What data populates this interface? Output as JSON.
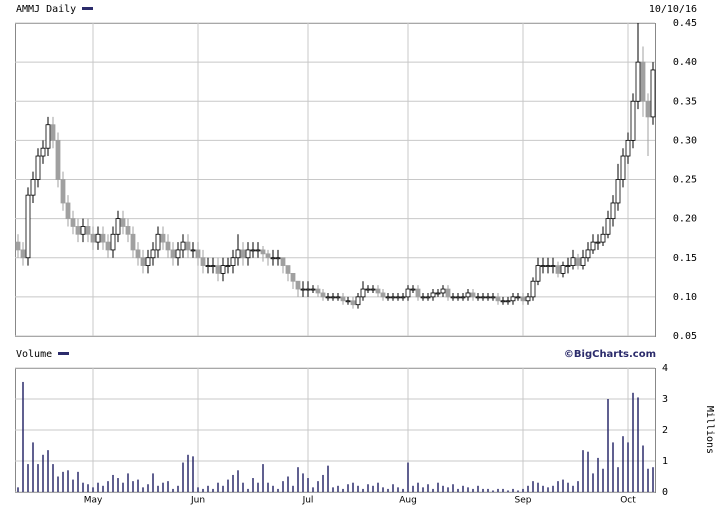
{
  "chart_data": {
    "type": "candlestick",
    "title": "AMMJ Daily",
    "date_label": "10/10/16",
    "source": "©BigCharts.com",
    "categories": [
      null,
      null,
      null,
      null,
      null,
      null,
      null,
      null,
      null,
      null,
      null,
      null,
      null,
      null,
      null,
      "May",
      null,
      null,
      null,
      null,
      null,
      null,
      null,
      null,
      null,
      null,
      null,
      null,
      null,
      null,
      null,
      null,
      null,
      null,
      null,
      null,
      "Jun",
      null,
      null,
      null,
      null,
      null,
      null,
      null,
      null,
      null,
      null,
      null,
      null,
      null,
      null,
      null,
      null,
      null,
      null,
      null,
      null,
      null,
      "Jul",
      null,
      null,
      null,
      null,
      null,
      null,
      null,
      null,
      null,
      null,
      null,
      null,
      null,
      null,
      null,
      null,
      null,
      null,
      null,
      "Aug",
      null,
      null,
      null,
      null,
      null,
      null,
      null,
      null,
      null,
      null,
      null,
      null,
      null,
      null,
      null,
      null,
      null,
      null,
      null,
      null,
      null,
      null,
      "Sep",
      null,
      null,
      null,
      null,
      null,
      null,
      null,
      null,
      null,
      null,
      null,
      null,
      null,
      null,
      null,
      null,
      null,
      null,
      null,
      null,
      "Oct",
      null,
      null,
      null,
      null,
      null
    ],
    "open": [
      0.17,
      0.16,
      0.15,
      0.23,
      0.25,
      0.28,
      0.29,
      0.32,
      0.3,
      0.25,
      0.22,
      0.2,
      0.19,
      0.18,
      0.19,
      0.18,
      0.17,
      0.18,
      0.17,
      0.16,
      0.18,
      0.2,
      0.19,
      0.18,
      0.16,
      0.15,
      0.14,
      0.15,
      0.16,
      0.18,
      0.17,
      0.16,
      0.15,
      0.16,
      0.17,
      0.16,
      0.16,
      0.15,
      0.14,
      0.14,
      0.14,
      0.13,
      0.14,
      0.14,
      0.15,
      0.16,
      0.15,
      0.16,
      0.16,
      0.16,
      0.155,
      0.15,
      0.15,
      0.15,
      0.14,
      0.13,
      0.12,
      0.11,
      0.11,
      0.11,
      0.11,
      0.105,
      0.1,
      0.1,
      0.1,
      0.1,
      0.095,
      0.095,
      0.09,
      0.1,
      0.11,
      0.11,
      0.11,
      0.105,
      0.1,
      0.1,
      0.1,
      0.1,
      0.1,
      0.11,
      0.11,
      0.1,
      0.1,
      0.1,
      0.105,
      0.105,
      0.11,
      0.1,
      0.1,
      0.1,
      0.1,
      0.105,
      0.1,
      0.1,
      0.1,
      0.1,
      0.1,
      0.095,
      0.095,
      0.095,
      0.1,
      0.1,
      0.095,
      0.1,
      0.12,
      0.14,
      0.14,
      0.14,
      0.14,
      0.13,
      0.14,
      0.14,
      0.15,
      0.14,
      0.15,
      0.16,
      0.17,
      0.17,
      0.18,
      0.2,
      0.22,
      0.25,
      0.28,
      0.3,
      0.35,
      0.4,
      0.35,
      0.33
    ],
    "high": [
      0.18,
      0.17,
      0.24,
      0.26,
      0.29,
      0.3,
      0.33,
      0.33,
      0.31,
      0.26,
      0.23,
      0.21,
      0.2,
      0.2,
      0.2,
      0.19,
      0.19,
      0.19,
      0.18,
      0.19,
      0.21,
      0.21,
      0.2,
      0.19,
      0.17,
      0.16,
      0.16,
      0.17,
      0.19,
      0.19,
      0.18,
      0.17,
      0.17,
      0.18,
      0.18,
      0.17,
      0.17,
      0.16,
      0.15,
      0.15,
      0.15,
      0.15,
      0.15,
      0.16,
      0.18,
      0.17,
      0.17,
      0.17,
      0.17,
      0.165,
      0.16,
      0.16,
      0.16,
      0.15,
      0.14,
      0.13,
      0.12,
      0.12,
      0.12,
      0.115,
      0.115,
      0.11,
      0.105,
      0.105,
      0.105,
      0.105,
      0.1,
      0.1,
      0.105,
      0.12,
      0.115,
      0.115,
      0.115,
      0.11,
      0.105,
      0.105,
      0.105,
      0.105,
      0.115,
      0.115,
      0.115,
      0.105,
      0.105,
      0.11,
      0.11,
      0.115,
      0.115,
      0.105,
      0.105,
      0.105,
      0.11,
      0.11,
      0.105,
      0.105,
      0.105,
      0.105,
      0.105,
      0.1,
      0.1,
      0.105,
      0.105,
      0.105,
      0.105,
      0.125,
      0.15,
      0.15,
      0.15,
      0.15,
      0.145,
      0.145,
      0.15,
      0.16,
      0.155,
      0.16,
      0.17,
      0.18,
      0.18,
      0.19,
      0.21,
      0.23,
      0.27,
      0.29,
      0.31,
      0.36,
      0.45,
      0.42,
      0.36,
      0.4
    ],
    "low": [
      0.15,
      0.14,
      0.14,
      0.22,
      0.24,
      0.27,
      0.28,
      0.29,
      0.24,
      0.21,
      0.19,
      0.18,
      0.17,
      0.17,
      0.17,
      0.16,
      0.16,
      0.16,
      0.15,
      0.15,
      0.17,
      0.18,
      0.17,
      0.15,
      0.14,
      0.13,
      0.13,
      0.14,
      0.15,
      0.16,
      0.15,
      0.14,
      0.14,
      0.15,
      0.15,
      0.15,
      0.14,
      0.13,
      0.13,
      0.13,
      0.12,
      0.12,
      0.13,
      0.13,
      0.14,
      0.14,
      0.14,
      0.15,
      0.15,
      0.145,
      0.14,
      0.14,
      0.14,
      0.13,
      0.12,
      0.11,
      0.1,
      0.1,
      0.1,
      0.105,
      0.1,
      0.095,
      0.095,
      0.095,
      0.095,
      0.09,
      0.09,
      0.085,
      0.085,
      0.095,
      0.105,
      0.105,
      0.1,
      0.095,
      0.095,
      0.095,
      0.095,
      0.095,
      0.095,
      0.105,
      0.095,
      0.095,
      0.095,
      0.095,
      0.1,
      0.1,
      0.095,
      0.095,
      0.095,
      0.095,
      0.095,
      0.095,
      0.095,
      0.095,
      0.095,
      0.095,
      0.09,
      0.09,
      0.09,
      0.09,
      0.095,
      0.09,
      0.09,
      0.095,
      0.115,
      0.13,
      0.13,
      0.13,
      0.125,
      0.125,
      0.13,
      0.135,
      0.135,
      0.135,
      0.145,
      0.155,
      0.16,
      0.165,
      0.175,
      0.19,
      0.21,
      0.24,
      0.27,
      0.29,
      0.34,
      0.33,
      0.28,
      0.32
    ],
    "close": [
      0.16,
      0.15,
      0.23,
      0.25,
      0.28,
      0.29,
      0.32,
      0.3,
      0.25,
      0.22,
      0.2,
      0.19,
      0.18,
      0.19,
      0.18,
      0.17,
      0.18,
      0.17,
      0.16,
      0.18,
      0.2,
      0.19,
      0.18,
      0.16,
      0.15,
      0.14,
      0.15,
      0.16,
      0.18,
      0.17,
      0.16,
      0.15,
      0.16,
      0.17,
      0.16,
      0.16,
      0.15,
      0.14,
      0.14,
      0.14,
      0.13,
      0.14,
      0.14,
      0.15,
      0.16,
      0.15,
      0.16,
      0.16,
      0.16,
      0.155,
      0.15,
      0.15,
      0.15,
      0.14,
      0.13,
      0.12,
      0.11,
      0.11,
      0.11,
      0.11,
      0.105,
      0.1,
      0.1,
      0.1,
      0.1,
      0.095,
      0.095,
      0.09,
      0.1,
      0.11,
      0.11,
      0.11,
      0.105,
      0.1,
      0.1,
      0.1,
      0.1,
      0.1,
      0.11,
      0.11,
      0.1,
      0.1,
      0.1,
      0.105,
      0.105,
      0.11,
      0.1,
      0.1,
      0.1,
      0.1,
      0.105,
      0.1,
      0.1,
      0.1,
      0.1,
      0.1,
      0.095,
      0.095,
      0.095,
      0.1,
      0.1,
      0.095,
      0.1,
      0.12,
      0.14,
      0.14,
      0.14,
      0.14,
      0.13,
      0.14,
      0.14,
      0.15,
      0.14,
      0.15,
      0.16,
      0.17,
      0.17,
      0.18,
      0.2,
      0.22,
      0.25,
      0.28,
      0.3,
      0.35,
      0.4,
      0.35,
      0.33,
      0.39
    ],
    "up_color": "#ffffff",
    "down_color": "#a0a0a0",
    "ylim": [
      0.05,
      0.45
    ],
    "yticks": [
      0.05,
      {
        "value": 0.1,
        "label": "0.10"
      },
      0.15,
      {
        "value": 0.2,
        "label": "0.20"
      },
      0.25,
      {
        "value": 0.3,
        "label": "0.30"
      },
      0.35,
      {
        "value": 0.4,
        "label": "0.40"
      },
      0.45
    ],
    "grid": true,
    "volume": {
      "label": "Volume",
      "unit_label": "Millions",
      "color": "#2b2b6b",
      "ylim": [
        0,
        4
      ],
      "yticks": [
        0,
        1,
        2,
        3,
        4
      ],
      "values": [
        0.15,
        3.55,
        0.9,
        1.6,
        0.9,
        1.2,
        1.35,
        0.9,
        0.5,
        0.65,
        0.7,
        0.4,
        0.65,
        0.3,
        0.25,
        0.15,
        0.3,
        0.2,
        0.35,
        0.55,
        0.45,
        0.3,
        0.6,
        0.35,
        0.4,
        0.15,
        0.25,
        0.6,
        0.2,
        0.3,
        0.35,
        0.1,
        0.2,
        0.95,
        1.2,
        1.15,
        0.15,
        0.1,
        0.2,
        0.1,
        0.3,
        0.2,
        0.4,
        0.55,
        0.7,
        0.3,
        0.1,
        0.45,
        0.3,
        0.9,
        0.3,
        0.2,
        0.1,
        0.35,
        0.5,
        0.2,
        0.8,
        0.6,
        0.45,
        0.15,
        0.35,
        0.55,
        0.85,
        0.15,
        0.2,
        0.1,
        0.25,
        0.3,
        0.2,
        0.1,
        0.25,
        0.2,
        0.3,
        0.15,
        0.1,
        0.25,
        0.15,
        0.1,
        0.95,
        0.2,
        0.3,
        0.15,
        0.25,
        0.1,
        0.3,
        0.2,
        0.15,
        0.25,
        0.1,
        0.2,
        0.15,
        0.1,
        0.2,
        0.1,
        0.1,
        0.05,
        0.1,
        0.1,
        0.05,
        0.1,
        0.05,
        0.1,
        0.2,
        0.35,
        0.3,
        0.2,
        0.15,
        0.2,
        0.35,
        0.4,
        0.3,
        0.2,
        0.35,
        1.35,
        1.3,
        0.6,
        1.1,
        0.75,
        3.0,
        1.6,
        0.8,
        1.8,
        1.6,
        3.2,
        3.05,
        1.5,
        0.75,
        0.8
      ]
    }
  }
}
